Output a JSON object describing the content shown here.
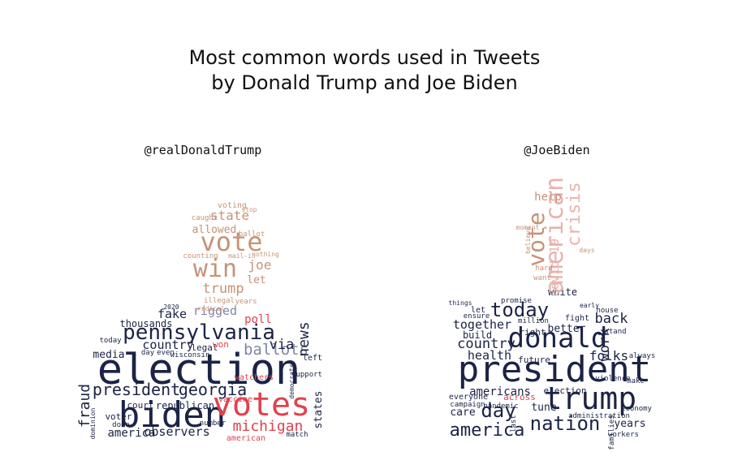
{
  "chart_data": {
    "type": "wordcloud",
    "title": [
      "Most common words used in Tweets",
      "by Donald Trump and Joe Biden"
    ],
    "colors": {
      "navy": "#1b2346",
      "slate": "#7f86a6",
      "red": "#e0424f",
      "tan": "#c79276",
      "rose": "#e7b3ad",
      "gray": "#9aa0b4"
    },
    "panels": [
      {
        "label": "@realDonaldTrump",
        "words": [
          {
            "text": "election",
            "color": "navy"
          },
          {
            "text": "biden",
            "color": "navy"
          },
          {
            "text": "votes",
            "color": "red"
          },
          {
            "text": "pennsylvania",
            "color": "navy"
          },
          {
            "text": "vote",
            "color": "tan"
          },
          {
            "text": "win",
            "color": "tan"
          },
          {
            "text": "president",
            "color": "navy"
          },
          {
            "text": "georgia",
            "color": "navy"
          },
          {
            "text": "michigan",
            "color": "red"
          },
          {
            "text": "trump",
            "color": "tan"
          },
          {
            "text": "ballots",
            "color": "slate"
          },
          {
            "text": "state",
            "color": "tan"
          },
          {
            "text": "allowed",
            "color": "tan"
          },
          {
            "text": "rigged",
            "color": "slate"
          },
          {
            "text": "fraud",
            "color": "navy"
          },
          {
            "text": "news",
            "color": "navy"
          },
          {
            "text": "via",
            "color": "navy"
          },
          {
            "text": "fake",
            "color": "navy"
          },
          {
            "text": "country",
            "color": "navy"
          },
          {
            "text": "observers",
            "color": "navy"
          },
          {
            "text": "america",
            "color": "navy"
          },
          {
            "text": "media",
            "color": "navy"
          },
          {
            "text": "poll",
            "color": "red"
          },
          {
            "text": "joe",
            "color": "tan"
          },
          {
            "text": "let",
            "color": "tan"
          },
          {
            "text": "thousands",
            "color": "navy"
          },
          {
            "text": "republican",
            "color": "navy"
          },
          {
            "text": "court",
            "color": "navy"
          },
          {
            "text": "voter",
            "color": "navy"
          },
          {
            "text": "legal",
            "color": "navy"
          },
          {
            "text": "states",
            "color": "navy"
          },
          {
            "text": "won",
            "color": "red"
          },
          {
            "text": "watchers",
            "color": "red"
          },
          {
            "text": "vaccine",
            "color": "red"
          },
          {
            "text": "american",
            "color": "red"
          },
          {
            "text": "voting",
            "color": "tan"
          },
          {
            "text": "caught",
            "color": "tan"
          },
          {
            "text": "counting",
            "color": "tan"
          },
          {
            "text": "ballot",
            "color": "tan"
          },
          {
            "text": "illegal",
            "color": "tan"
          },
          {
            "text": "years",
            "color": "tan"
          },
          {
            "text": "mail-in",
            "color": "tan"
          },
          {
            "text": "radical",
            "color": "tan"
          },
          {
            "text": "2020",
            "color": "navy"
          },
          {
            "text": "left",
            "color": "navy"
          },
          {
            "text": "wisconsin",
            "color": "navy"
          },
          {
            "text": "dominion",
            "color": "navy"
          },
          {
            "text": "support",
            "color": "navy"
          },
          {
            "text": "democrats",
            "color": "navy"
          },
          {
            "text": "number",
            "color": "navy"
          },
          {
            "text": "even",
            "color": "navy"
          },
          {
            "text": "day",
            "color": "navy"
          },
          {
            "text": "done",
            "color": "navy"
          },
          {
            "text": "today",
            "color": "navy"
          },
          {
            "text": "match",
            "color": "navy"
          },
          {
            "text": "nothing",
            "color": "tan"
          },
          {
            "text": "stop",
            "color": "tan"
          }
        ]
      },
      {
        "label": "@JoeBiden",
        "words": [
          {
            "text": "president",
            "color": "navy"
          },
          {
            "text": "donald",
            "color": "navy"
          },
          {
            "text": "trump",
            "color": "navy"
          },
          {
            "text": "nation",
            "color": "navy"
          },
          {
            "text": "america",
            "color": "navy"
          },
          {
            "text": "today",
            "color": "navy"
          },
          {
            "text": "day",
            "color": "navy"
          },
          {
            "text": "country",
            "color": "navy"
          },
          {
            "text": "together",
            "color": "navy"
          },
          {
            "text": "health",
            "color": "navy"
          },
          {
            "text": "americans",
            "color": "navy"
          },
          {
            "text": "folks",
            "color": "navy"
          },
          {
            "text": "back",
            "color": "navy"
          },
          {
            "text": "work",
            "color": "navy"
          },
          {
            "text": "build",
            "color": "navy"
          },
          {
            "text": "right",
            "color": "navy"
          },
          {
            "text": "better",
            "color": "navy"
          },
          {
            "text": "care",
            "color": "navy"
          },
          {
            "text": "tune",
            "color": "navy"
          },
          {
            "text": "years",
            "color": "navy"
          },
          {
            "text": "future",
            "color": "navy"
          },
          {
            "text": "election",
            "color": "navy"
          },
          {
            "text": "white",
            "color": "navy"
          },
          {
            "text": "vote",
            "color": "tan"
          },
          {
            "text": "american",
            "color": "rose"
          },
          {
            "text": "crisis",
            "color": "rose"
          },
          {
            "text": "covid-19",
            "color": "rose"
          },
          {
            "text": "help",
            "color": "tan"
          },
          {
            "text": "across",
            "color": "red"
          },
          {
            "text": "everyone",
            "color": "navy"
          },
          {
            "text": "campaign",
            "color": "navy"
          },
          {
            "text": "pandemic",
            "color": "navy"
          },
          {
            "text": "million",
            "color": "navy"
          },
          {
            "text": "fight",
            "color": "navy"
          },
          {
            "text": "house",
            "color": "navy"
          },
          {
            "text": "economy",
            "color": "navy"
          },
          {
            "text": "workers",
            "color": "navy"
          },
          {
            "text": "administration",
            "color": "navy"
          },
          {
            "text": "families",
            "color": "navy"
          },
          {
            "text": "violence",
            "color": "navy"
          },
          {
            "text": "ensure",
            "color": "navy"
          },
          {
            "text": "promise",
            "color": "navy"
          },
          {
            "text": "hard",
            "color": "tan"
          },
          {
            "text": "want",
            "color": "tan"
          },
          {
            "text": "moment",
            "color": "tan"
          },
          {
            "text": "believe",
            "color": "tan"
          },
          {
            "text": "days",
            "color": "tan"
          },
          {
            "text": "let",
            "color": "navy"
          },
          {
            "text": "things",
            "color": "navy"
          },
          {
            "text": "last",
            "color": "navy"
          },
          {
            "text": "always",
            "color": "navy"
          },
          {
            "text": "make",
            "color": "navy"
          },
          {
            "text": "stand",
            "color": "navy"
          },
          {
            "text": "early",
            "color": "navy"
          }
        ]
      }
    ]
  }
}
